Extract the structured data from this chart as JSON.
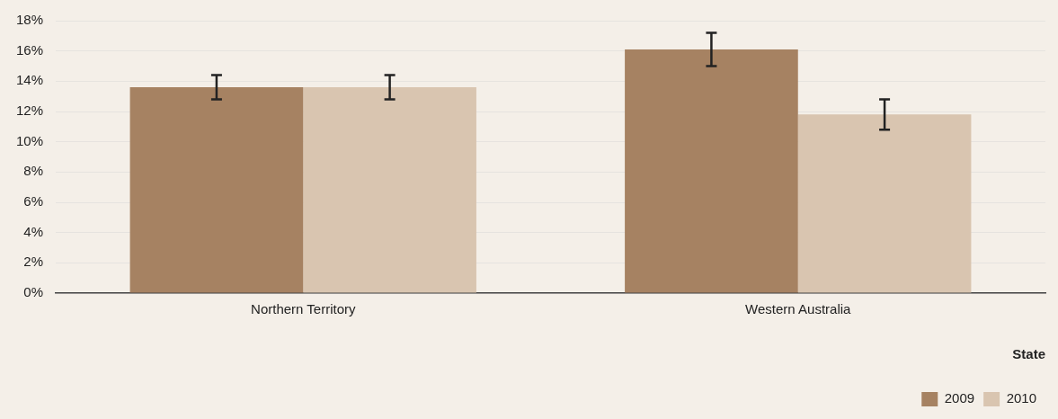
{
  "chart_data": {
    "type": "bar",
    "xlabel": "State",
    "categories": [
      "Northern Territory",
      "Western Australia"
    ],
    "series": [
      {
        "name": "2009",
        "color": "#a68262",
        "values": [
          13.6,
          16.1
        ],
        "errors": [
          [
            12.8,
            14.4
          ],
          [
            15.0,
            17.2
          ]
        ]
      },
      {
        "name": "2010",
        "color": "#d9c5b0",
        "values": [
          13.6,
          11.8
        ],
        "errors": [
          [
            12.8,
            14.4
          ],
          [
            10.8,
            12.8
          ]
        ]
      }
    ],
    "ylim": [
      0,
      18
    ],
    "yticks": [
      {
        "value": 0,
        "label": "0%"
      },
      {
        "value": 2,
        "label": "2%"
      },
      {
        "value": 4,
        "label": "4%"
      },
      {
        "value": 6,
        "label": "6%"
      },
      {
        "value": 8,
        "label": "8%"
      },
      {
        "value": 10,
        "label": "10%"
      },
      {
        "value": 12,
        "label": "12%"
      },
      {
        "value": 14,
        "label": "14%"
      },
      {
        "value": 16,
        "label": "16%"
      },
      {
        "value": 18,
        "label": "18%"
      }
    ],
    "grid": "y",
    "legend": "bottom right"
  }
}
